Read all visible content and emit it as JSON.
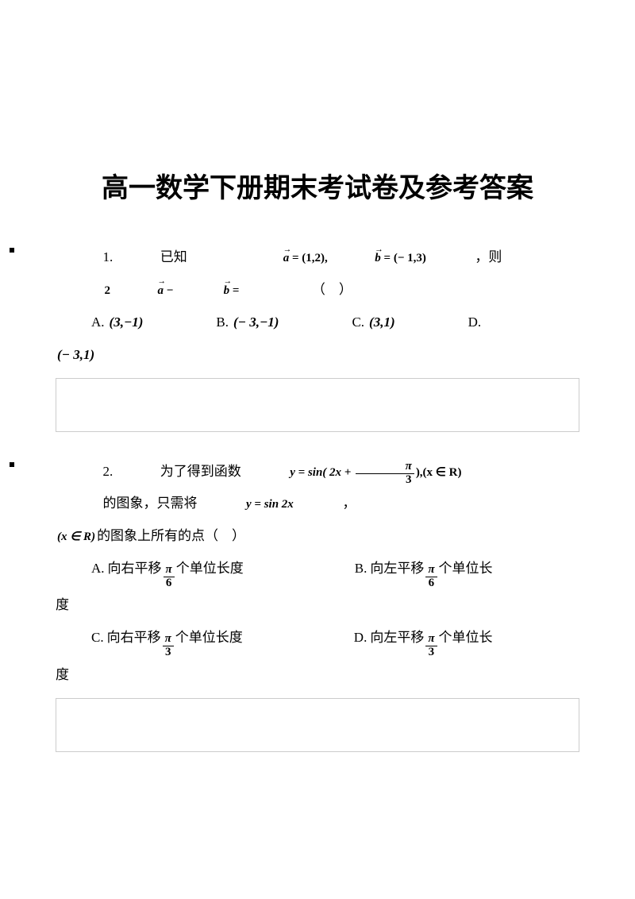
{
  "title": "高一数学下册期末考试卷及参考答案",
  "colors": {
    "text": "#000000",
    "background": "#ffffff",
    "box_border": "#cccccc"
  },
  "typography": {
    "title_font": "SimHei",
    "title_size_pt": 26,
    "body_font": "SimSun",
    "body_size_pt": 13,
    "math_font": "Times New Roman",
    "math_bold_italic": true
  },
  "q1": {
    "number": "1.",
    "prefix": "已知",
    "vec_a": "a",
    "eq_a": " = (1,2),",
    "vec_b": "b",
    "eq_b": " = (− 1,3)",
    "comma": "，则",
    "expr_2": "2",
    "expr_minus": " − ",
    "expr_eq": " = ",
    "tail": "（　）",
    "A_label": "A.",
    "A_val": "(3,−1)",
    "B_label": "B.",
    "B_val": "(− 3,−1)",
    "C_label": "C.",
    "C_val": "(3,1)",
    "D_label": "D.",
    "D_val": "(− 3,1)"
  },
  "q2": {
    "number": "2.",
    "prefix": "为了得到函数",
    "y_eq": "y = sin( 2x + ",
    "pi": "π",
    "three": "3",
    "close_paren": "),(x ∈ R)",
    "mid": "的图象，只需将",
    "y_sin2x": "y = sin 2x",
    "comma": "，",
    "xr": "(x ∈ R)",
    "line2_tail": "的图象上所有的点（　）",
    "A_label": "A.",
    "A_pre": "向右平移",
    "A_num": "π",
    "A_den": "6",
    "A_post": "个单位长度",
    "B_label": "B.",
    "B_pre": "向左平移",
    "B_num": "π",
    "B_den": "6",
    "B_post": "个单位长",
    "B_cont": "度",
    "C_label": "C.",
    "C_pre": "向右平移",
    "C_num": "π",
    "C_den": "3",
    "C_post": "个单位长度",
    "D_label": "D.",
    "D_pre": "向左平移",
    "D_num": "π",
    "D_den": "3",
    "D_post": "个单位长",
    "D_cont": "度"
  }
}
